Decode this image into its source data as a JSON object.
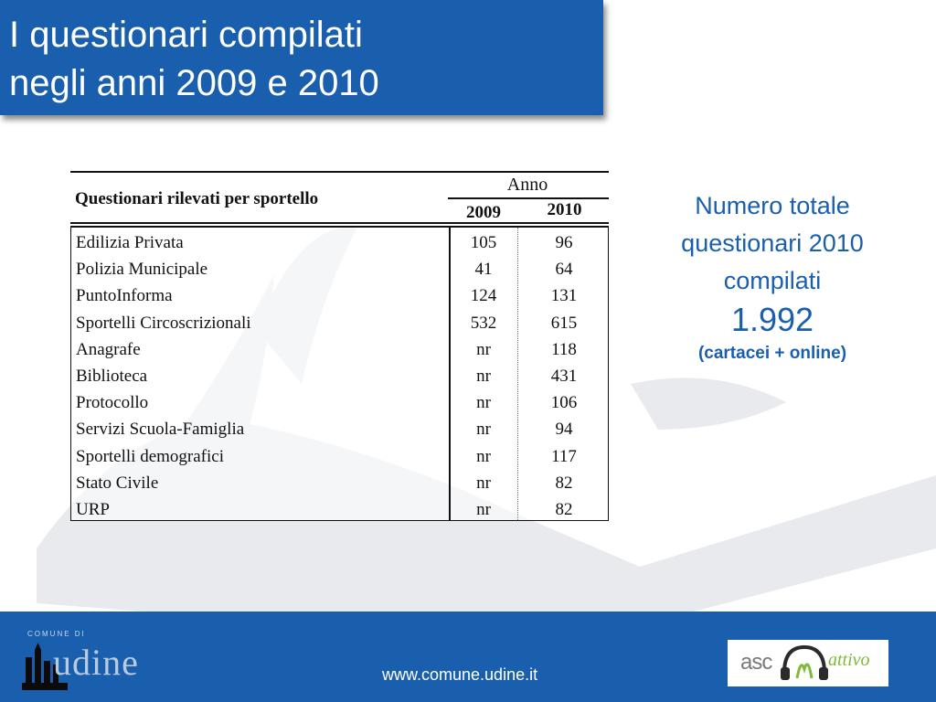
{
  "title": {
    "line1": "I questionari compilati",
    "line2": "negli anni 2009 e 2010"
  },
  "table": {
    "header_main": "Questionari rilevati per sportello",
    "header_group": "Anno",
    "header_years": [
      "2009",
      "2010"
    ],
    "rows": [
      {
        "name": "Edilizia Privata",
        "y2009": "105",
        "y2010": "96"
      },
      {
        "name": "Polizia Municipale",
        "y2009": "41",
        "y2010": "64"
      },
      {
        "name": "PuntoInforma",
        "y2009": "124",
        "y2010": "131"
      },
      {
        "name": "Sportelli Circoscrizionali",
        "y2009": "532",
        "y2010": "615"
      },
      {
        "name": "Anagrafe",
        "y2009": "nr",
        "y2010": "118"
      },
      {
        "name": "Biblioteca",
        "y2009": "nr",
        "y2010": "431"
      },
      {
        "name": "Protocollo",
        "y2009": "nr",
        "y2010": "106"
      },
      {
        "name": "Servizi Scuola-Famiglia",
        "y2009": "nr",
        "y2010": "94"
      },
      {
        "name": "Sportelli demografici",
        "y2009": "nr",
        "y2010": "117"
      },
      {
        "name": "Stato Civile",
        "y2009": "nr",
        "y2010": "82"
      },
      {
        "name": "URP",
        "y2009": "nr",
        "y2010": "82"
      }
    ]
  },
  "summary": {
    "line1": "Numero totale",
    "line2": "questionari 2010",
    "line3": "compilati",
    "value": "1.992",
    "note": "(cartacei + online)"
  },
  "footer": {
    "url": "www.comune.udine.it",
    "logo_left_small": "COMUNE DI",
    "logo_left_big": "udine",
    "logo_right_left": "asc",
    "logo_right_right": "attivo"
  },
  "colors": {
    "brand_blue": "#1a5fae",
    "accent_green": "#7dbb3a"
  }
}
